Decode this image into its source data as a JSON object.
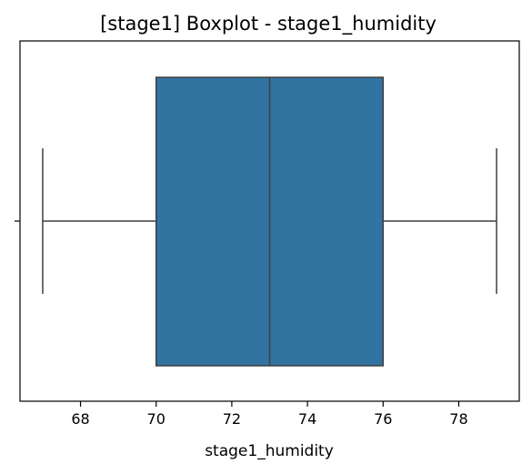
{
  "chart_data": {
    "type": "box",
    "title": "[stage1] Boxplot - stage1_humidity",
    "xlabel": "stage1_humidity",
    "ylabel": "",
    "orientation": "horizontal",
    "xlim": [
      66.4,
      79.6
    ],
    "xticks": [
      68,
      70,
      72,
      74,
      76,
      78
    ],
    "grid": false,
    "box": {
      "whisker_low": 67,
      "q1": 70,
      "median": 73,
      "q3": 76,
      "whisker_high": 79
    },
    "colors": {
      "box_fill": "#3274a1",
      "line": "#3f3f3f",
      "frame": "#000000"
    }
  }
}
